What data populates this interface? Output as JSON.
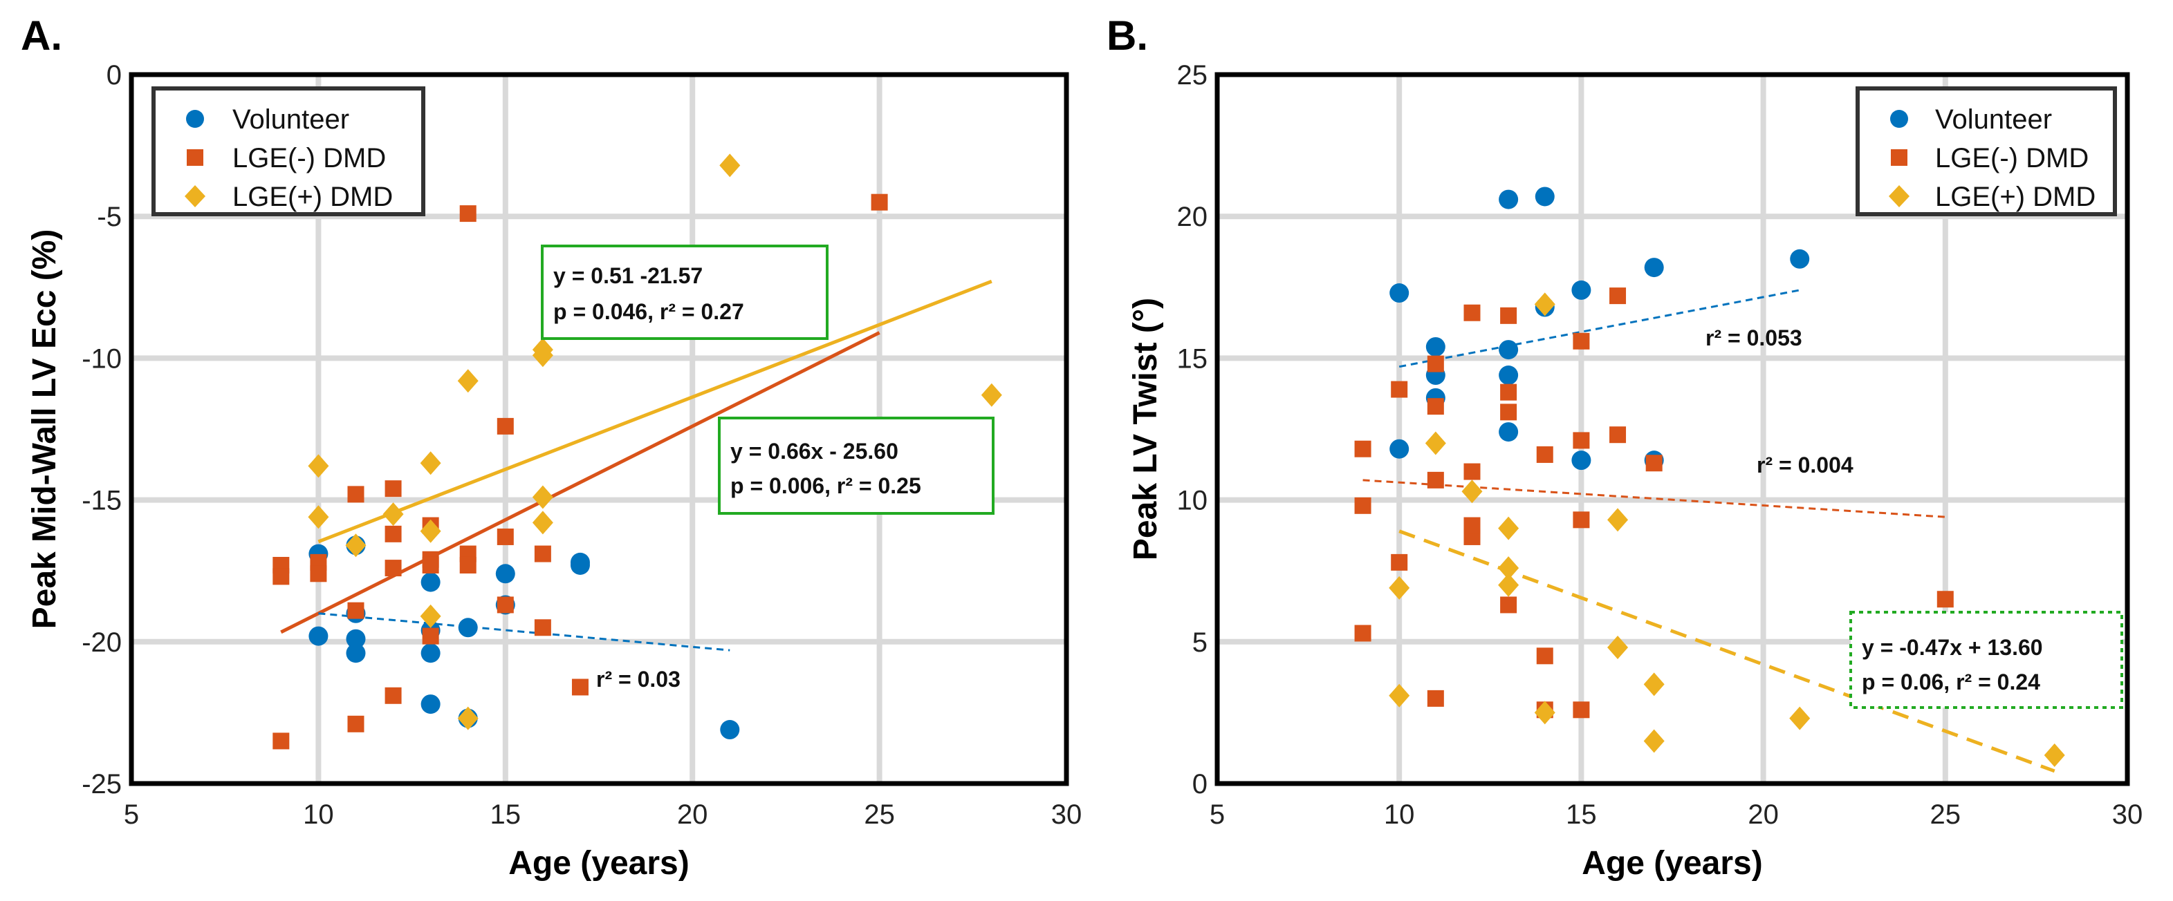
{
  "colors": {
    "volunteer": "#0072BD",
    "lge_neg": "#D95319",
    "lge_pos": "#EDB120",
    "box_green": "#22AA22",
    "grid": "#D9D9D9",
    "axis": "#000000"
  },
  "legend_labels": [
    "Volunteer",
    "LGE(-) DMD",
    "LGE(+) DMD"
  ],
  "chart_data": [
    {
      "panel": "A.",
      "type": "scatter",
      "xlabel": "Age (years)",
      "ylabel": "Peak Mid-Wall LV Ecc (%)",
      "xlim": [
        5,
        30
      ],
      "ylim": [
        -25,
        0
      ],
      "xticks": [
        5,
        10,
        15,
        20,
        25,
        30
      ],
      "yticks": [
        -25,
        -20,
        -15,
        -10,
        -5,
        0
      ],
      "grid": true,
      "legend_position": "top-left",
      "series": [
        {
          "name": "Volunteer",
          "marker": "circle",
          "points": [
            [
              10,
              -16.9
            ],
            [
              10,
              -19.8
            ],
            [
              11,
              -19.0
            ],
            [
              11,
              -19.9
            ],
            [
              11,
              -20.4
            ],
            [
              11,
              -16.6
            ],
            [
              13,
              -17.9
            ],
            [
              13,
              -20.4
            ],
            [
              13,
              -22.2
            ],
            [
              13,
              -19.6
            ],
            [
              14,
              -19.5
            ],
            [
              14,
              -22.7
            ],
            [
              15,
              -17.6
            ],
            [
              15,
              -18.7
            ],
            [
              17,
              -17.2
            ],
            [
              17,
              -17.3
            ],
            [
              21,
              -23.1
            ]
          ]
        },
        {
          "name": "LGE(-) DMD",
          "marker": "square",
          "points": [
            [
              9,
              -17.3
            ],
            [
              9,
              -17.7
            ],
            [
              9,
              -23.5
            ],
            [
              10,
              -17.2
            ],
            [
              10,
              -17.6
            ],
            [
              11,
              -14.8
            ],
            [
              11,
              -18.9
            ],
            [
              11,
              -22.9
            ],
            [
              12,
              -14.6
            ],
            [
              12,
              -16.2
            ],
            [
              12,
              -17.4
            ],
            [
              12,
              -21.9
            ],
            [
              13,
              -15.9
            ],
            [
              13,
              -17.1
            ],
            [
              13,
              -17.3
            ],
            [
              13,
              -19.8
            ],
            [
              14,
              -4.9
            ],
            [
              14,
              -16.9
            ],
            [
              14,
              -17.3
            ],
            [
              15,
              -12.4
            ],
            [
              15,
              -16.3
            ],
            [
              15,
              -18.7
            ],
            [
              16,
              -16.9
            ],
            [
              16,
              -19.5
            ],
            [
              17,
              -21.6
            ],
            [
              25,
              -4.5
            ]
          ]
        },
        {
          "name": "LGE(+) DMD",
          "marker": "diamond",
          "points": [
            [
              10,
              -13.8
            ],
            [
              10,
              -15.6
            ],
            [
              11,
              -16.6
            ],
            [
              12,
              -15.5
            ],
            [
              13,
              -13.7
            ],
            [
              13,
              -16.1
            ],
            [
              13,
              -19.1
            ],
            [
              14,
              -10.8
            ],
            [
              14,
              -22.7
            ],
            [
              16,
              -9.7
            ],
            [
              16,
              -9.9
            ],
            [
              16,
              -14.9
            ],
            [
              16,
              -15.8
            ],
            [
              21,
              -3.2
            ],
            [
              28,
              -11.3
            ]
          ]
        }
      ],
      "fits": [
        {
          "series": "LGE(+) DMD",
          "style": "solid",
          "x": [
            10,
            28
          ],
          "y": [
            -16.47,
            -7.29
          ]
        },
        {
          "series": "LGE(-) DMD",
          "style": "solid",
          "x": [
            9,
            25
          ],
          "y": [
            -19.66,
            -9.1
          ]
        },
        {
          "series": "Volunteer",
          "style": "dashed",
          "x": [
            10,
            21
          ],
          "y": [
            -19.0,
            -20.3
          ]
        }
      ],
      "annotations": [
        {
          "lines": [
            "y = 0.51 -21.57",
            "p = 0.046, r² = 0.27"
          ],
          "box": "solid"
        },
        {
          "lines": [
            "y = 0.66x - 25.60",
            "p = 0.006, r² = 0.25"
          ],
          "box": "solid"
        },
        {
          "lines": [
            "r² = 0.03"
          ],
          "box": "none"
        }
      ]
    },
    {
      "panel": "B.",
      "type": "scatter",
      "xlabel": "Age (years)",
      "ylabel": "Peak LV Twist (°)",
      "xlim": [
        5,
        30
      ],
      "ylim": [
        0,
        25
      ],
      "xticks": [
        5,
        10,
        15,
        20,
        25,
        30
      ],
      "yticks": [
        0,
        5,
        10,
        15,
        20,
        25
      ],
      "grid": true,
      "legend_position": "top-right",
      "series": [
        {
          "name": "Volunteer",
          "marker": "circle",
          "points": [
            [
              10,
              17.3
            ],
            [
              10,
              11.8
            ],
            [
              11,
              15.4
            ],
            [
              11,
              14.4
            ],
            [
              11,
              13.6
            ],
            [
              13,
              20.6
            ],
            [
              13,
              15.3
            ],
            [
              13,
              14.4
            ],
            [
              13,
              12.4
            ],
            [
              14,
              20.7
            ],
            [
              14,
              16.8
            ],
            [
              15,
              17.4
            ],
            [
              15,
              11.4
            ],
            [
              17,
              18.2
            ],
            [
              17,
              11.4
            ],
            [
              21,
              18.5
            ]
          ]
        },
        {
          "name": "LGE(-) DMD",
          "marker": "square",
          "points": [
            [
              9,
              11.8
            ],
            [
              9,
              9.8
            ],
            [
              9,
              5.3
            ],
            [
              10,
              13.9
            ],
            [
              10,
              7.8
            ],
            [
              11,
              14.8
            ],
            [
              11,
              13.3
            ],
            [
              11,
              10.7
            ],
            [
              11,
              3.0
            ],
            [
              12,
              16.6
            ],
            [
              12,
              11.0
            ],
            [
              12,
              8.7
            ],
            [
              12,
              9.1
            ],
            [
              13,
              16.5
            ],
            [
              13,
              13.8
            ],
            [
              13,
              13.1
            ],
            [
              13,
              6.3
            ],
            [
              14,
              11.6
            ],
            [
              14,
              4.5
            ],
            [
              14,
              2.6
            ],
            [
              15,
              15.6
            ],
            [
              15,
              12.1
            ],
            [
              15,
              9.3
            ],
            [
              15,
              2.6
            ],
            [
              16,
              17.2
            ],
            [
              16,
              12.3
            ],
            [
              17,
              11.3
            ],
            [
              25,
              6.5
            ]
          ]
        },
        {
          "name": "LGE(+) DMD",
          "marker": "diamond",
          "points": [
            [
              10,
              6.9
            ],
            [
              10,
              3.1
            ],
            [
              11,
              12.0
            ],
            [
              12,
              10.3
            ],
            [
              13,
              9.0
            ],
            [
              13,
              7.6
            ],
            [
              13,
              7.0
            ],
            [
              14,
              16.9
            ],
            [
              14,
              2.5
            ],
            [
              16,
              9.3
            ],
            [
              16,
              4.8
            ],
            [
              17,
              3.5
            ],
            [
              17,
              1.5
            ],
            [
              21,
              2.3
            ],
            [
              28,
              1.0
            ]
          ]
        }
      ],
      "fits": [
        {
          "series": "Volunteer",
          "style": "dashed",
          "x": [
            10,
            21
          ],
          "y": [
            14.7,
            17.4
          ]
        },
        {
          "series": "LGE(-) DMD",
          "style": "dashed",
          "x": [
            9,
            25
          ],
          "y": [
            10.7,
            9.4
          ]
        },
        {
          "series": "LGE(+) DMD",
          "style": "dashed-thick",
          "x": [
            10,
            28
          ],
          "y": [
            8.9,
            0.44
          ]
        }
      ],
      "annotations": [
        {
          "lines": [
            "r² = 0.053"
          ],
          "box": "none"
        },
        {
          "lines": [
            "r² = 0.004"
          ],
          "box": "none"
        },
        {
          "lines": [
            "y = -0.47x + 13.60",
            "p = 0.06, r² = 0.24"
          ],
          "box": "dotted"
        }
      ]
    }
  ]
}
